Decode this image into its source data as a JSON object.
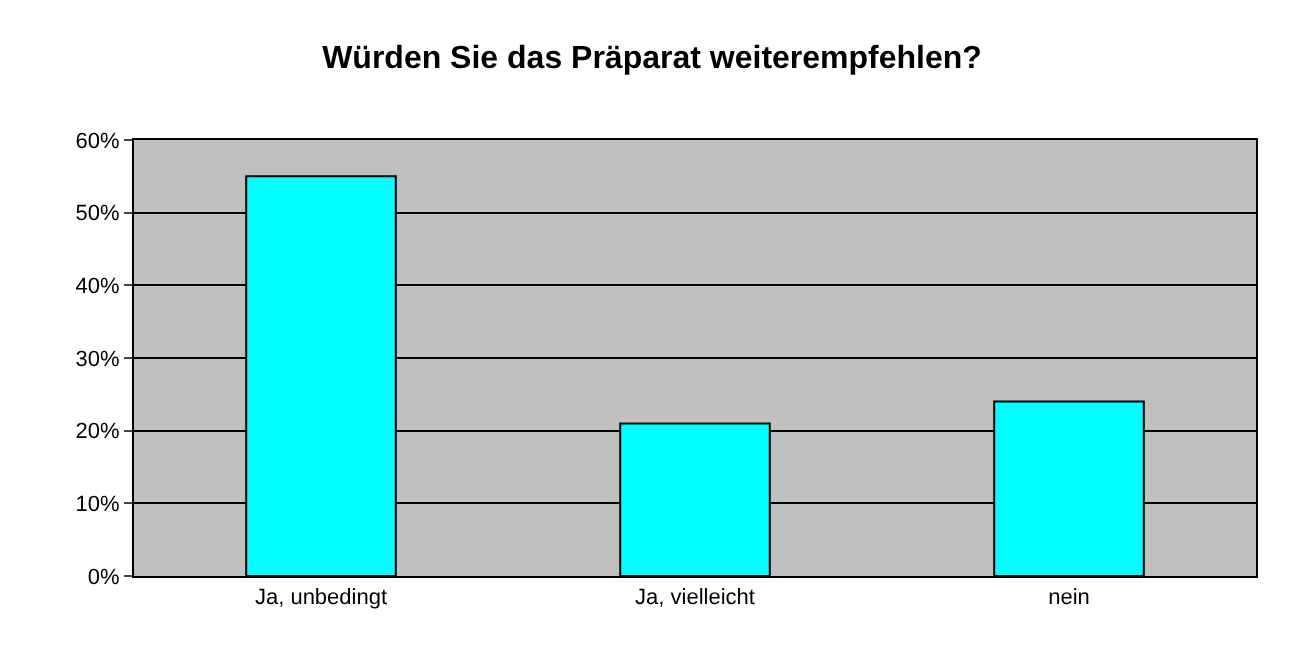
{
  "chart_data": {
    "type": "bar",
    "title": "Würden Sie das Präparat weiterempfehlen?",
    "categories": [
      "Ja, unbedingt",
      "Ja, vielleicht",
      "nein"
    ],
    "values": [
      55,
      21,
      24
    ],
    "color": "#00ffff",
    "ylim": [
      0,
      60
    ],
    "yticks": [
      {
        "value": 0,
        "label": "0%"
      },
      {
        "value": 10,
        "label": "10%"
      },
      {
        "value": 20,
        "label": "20%"
      },
      {
        "value": 30,
        "label": "30%"
      },
      {
        "value": 40,
        "label": "40%"
      },
      {
        "value": 50,
        "label": "50%"
      },
      {
        "value": 60,
        "label": "60%"
      }
    ],
    "grid": "y"
  }
}
